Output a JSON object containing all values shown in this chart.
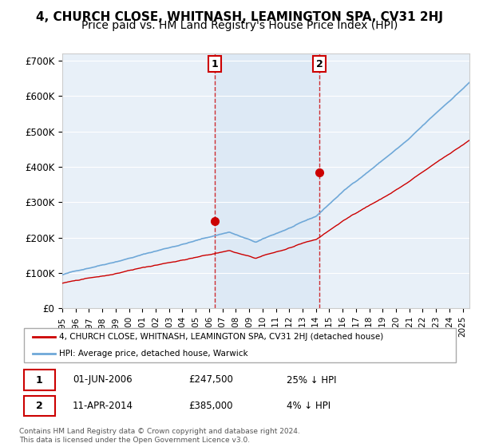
{
  "title": "4, CHURCH CLOSE, WHITNASH, LEAMINGTON SPA, CV31 2HJ",
  "subtitle": "Price paid vs. HM Land Registry's House Price Index (HPI)",
  "ylabel_ticks": [
    "£0",
    "£100K",
    "£200K",
    "£300K",
    "£400K",
    "£500K",
    "£600K",
    "£700K"
  ],
  "ytick_values": [
    0,
    100000,
    200000,
    300000,
    400000,
    500000,
    600000,
    700000
  ],
  "ylim": [
    0,
    720000
  ],
  "xlim_start": 1995.0,
  "xlim_end": 2025.5,
  "sale1_date": 2006.42,
  "sale1_price": 247500,
  "sale2_date": 2014.27,
  "sale2_price": 385000,
  "legend_property": "4, CHURCH CLOSE, WHITNASH, LEAMINGTON SPA, CV31 2HJ (detached house)",
  "legend_hpi": "HPI: Average price, detached house, Warwick",
  "note1_date": "01-JUN-2006",
  "note1_price": "£247,500",
  "note1_pct": "25% ↓ HPI",
  "note2_date": "11-APR-2014",
  "note2_price": "£385,000",
  "note2_pct": "4% ↓ HPI",
  "footnote": "Contains HM Land Registry data © Crown copyright and database right 2024.\nThis data is licensed under the Open Government Licence v3.0.",
  "bg_color": "#ffffff",
  "plot_bg_color": "#e8f0f8",
  "grid_color": "#ffffff",
  "hpi_color": "#6fa8d8",
  "price_color": "#cc0000",
  "shade_color": "#dce8f5",
  "title_fontsize": 11,
  "subtitle_fontsize": 10
}
